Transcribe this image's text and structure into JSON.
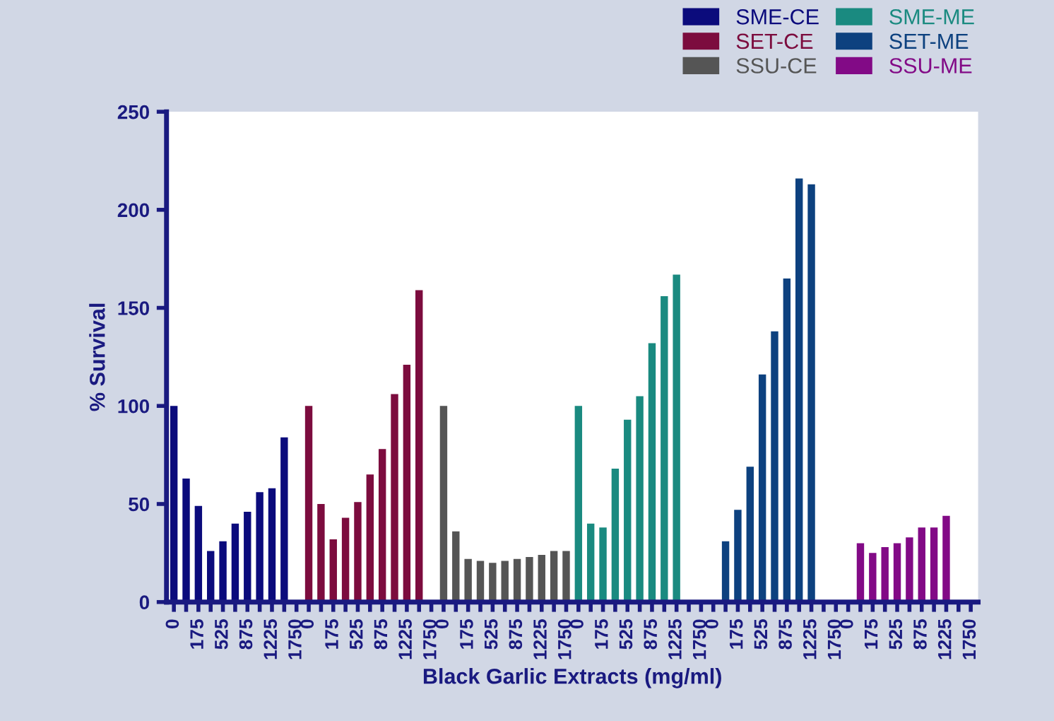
{
  "chart_data": {
    "type": "bar",
    "xlabel": "Black Garlic Extracts (mg/ml)",
    "ylabel": "% Survival",
    "categories": [
      "0",
      null,
      "175",
      null,
      "525",
      null,
      "875",
      null,
      "1225",
      null,
      "1750",
      "0",
      null,
      "175",
      null,
      "525",
      null,
      "875",
      null,
      "1225",
      null,
      "1750",
      "0",
      null,
      "175",
      null,
      "525",
      null,
      "875",
      null,
      "1225",
      null,
      "1750",
      "0",
      null,
      "175",
      null,
      "525",
      null,
      "875",
      null,
      "1225",
      null,
      "1750",
      "0",
      null,
      "175",
      null,
      "525",
      null,
      "875",
      null,
      "1225",
      null,
      "1750",
      "0",
      null,
      "175",
      null,
      "525",
      null,
      "875",
      null,
      "1225",
      null,
      "1750"
    ],
    "series": [
      {
        "name": "SME-CE",
        "color": "#0b0b7c",
        "values": [
          100,
          63,
          49,
          26,
          31,
          40,
          46,
          56,
          58,
          84,
          null,
          null,
          null,
          null,
          null,
          null,
          null,
          null,
          null,
          null,
          null,
          null,
          null,
          null,
          null,
          null,
          null,
          null,
          null,
          null,
          null,
          null,
          null,
          null,
          null,
          null,
          null,
          null,
          null,
          null,
          null,
          null,
          null,
          null,
          null,
          null,
          null,
          null,
          null,
          null,
          null,
          null,
          null,
          null,
          null,
          null,
          null,
          null,
          null,
          null,
          null,
          null,
          null,
          null,
          null,
          null
        ]
      },
      {
        "name": "SET-CE",
        "color": "#7c0c3e",
        "values": [
          null,
          null,
          null,
          null,
          null,
          null,
          null,
          null,
          null,
          null,
          null,
          100,
          50,
          32,
          43,
          51,
          65,
          78,
          106,
          121,
          159,
          null,
          null,
          null,
          null,
          null,
          null,
          null,
          null,
          null,
          null,
          null,
          null,
          null,
          null,
          null,
          null,
          null,
          null,
          null,
          null,
          null,
          null,
          null,
          null,
          null,
          null,
          null,
          null,
          null,
          null,
          null,
          null,
          null,
          null,
          null,
          null,
          null,
          null,
          null,
          null,
          null,
          null,
          null,
          null,
          null
        ]
      },
      {
        "name": "SSU-CE",
        "color": "#555555",
        "values": [
          null,
          null,
          null,
          null,
          null,
          null,
          null,
          null,
          null,
          null,
          null,
          null,
          null,
          null,
          null,
          null,
          null,
          null,
          null,
          null,
          null,
          null,
          100,
          36,
          22,
          21,
          20,
          21,
          22,
          23,
          24,
          26,
          26,
          null,
          null,
          null,
          null,
          null,
          null,
          null,
          null,
          null,
          null,
          null,
          null,
          null,
          null,
          null,
          null,
          null,
          null,
          null,
          null,
          null,
          null,
          null,
          null,
          null,
          null,
          null,
          null,
          null,
          null,
          null,
          null,
          null
        ]
      },
      {
        "name": "SME-ME",
        "color": "#1a8a80",
        "values": [
          null,
          null,
          null,
          null,
          null,
          null,
          null,
          null,
          null,
          null,
          null,
          null,
          null,
          null,
          null,
          null,
          null,
          null,
          null,
          null,
          null,
          null,
          null,
          null,
          null,
          null,
          null,
          null,
          null,
          null,
          null,
          null,
          null,
          100,
          40,
          38,
          68,
          93,
          105,
          132,
          156,
          167,
          null,
          null,
          null,
          null,
          null,
          null,
          null,
          null,
          null,
          null,
          null,
          null,
          null,
          null,
          null,
          null,
          null,
          null,
          null,
          null,
          null,
          null,
          null,
          null
        ]
      },
      {
        "name": "SET-ME",
        "color": "#0d417f",
        "values": [
          null,
          null,
          null,
          null,
          null,
          null,
          null,
          null,
          null,
          null,
          null,
          null,
          null,
          null,
          null,
          null,
          null,
          null,
          null,
          null,
          null,
          null,
          null,
          null,
          null,
          null,
          null,
          null,
          null,
          null,
          null,
          null,
          null,
          null,
          null,
          null,
          null,
          null,
          null,
          null,
          null,
          null,
          null,
          null,
          null,
          31,
          47,
          69,
          116,
          138,
          165,
          216,
          213,
          null,
          null,
          null,
          null,
          null,
          null,
          null,
          null,
          null,
          null,
          null,
          null,
          null
        ]
      },
      {
        "name": "SSU-ME",
        "color": "#820a86",
        "values": [
          null,
          null,
          null,
          null,
          null,
          null,
          null,
          null,
          null,
          null,
          null,
          null,
          null,
          null,
          null,
          null,
          null,
          null,
          null,
          null,
          null,
          null,
          null,
          null,
          null,
          null,
          null,
          null,
          null,
          null,
          null,
          null,
          null,
          null,
          null,
          null,
          null,
          null,
          null,
          null,
          null,
          null,
          null,
          null,
          null,
          null,
          null,
          null,
          null,
          null,
          null,
          null,
          null,
          null,
          null,
          null,
          30,
          25,
          28,
          30,
          33,
          38,
          38,
          44,
          null,
          null
        ]
      }
    ],
    "ylim": [
      0,
      250
    ],
    "yticks": [
      0,
      50,
      100,
      150,
      200,
      250
    ],
    "grid": false,
    "legend": "top right"
  }
}
